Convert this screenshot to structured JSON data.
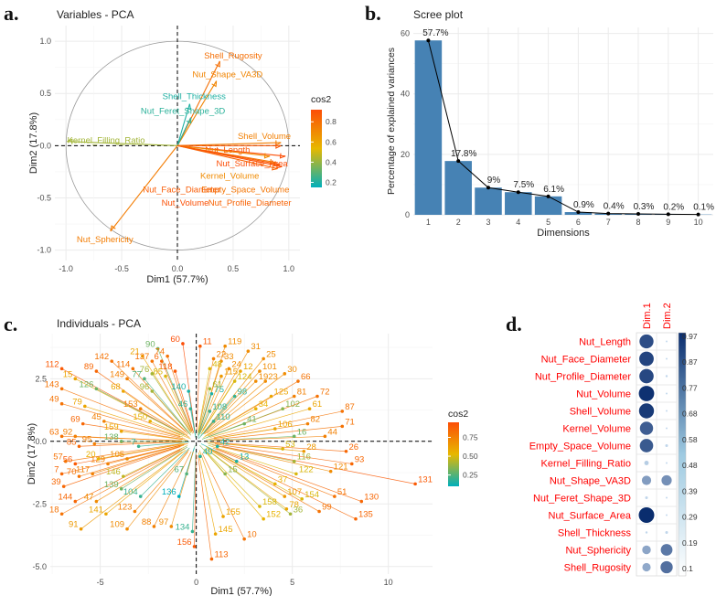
{
  "panel_labels": {
    "a": "a.",
    "b": "b.",
    "c": "c.",
    "d": "d."
  },
  "chart_data": [
    {
      "type": "scatter",
      "subtype": "pca-variable-correlation-circle",
      "title": "Variables - PCA",
      "xlabel": "Dim1 (57.7%)",
      "ylabel": "Dim2 (17.8%)",
      "xlim": [
        -1.1,
        1.1
      ],
      "ylim": [
        -1.1,
        1.15
      ],
      "xticks": [
        "-1.0",
        "-0.5",
        "0.0",
        "0.5",
        "1.0"
      ],
      "yticks": [
        "-1.0",
        "-0.5",
        "0.0",
        "0.5",
        "1.0"
      ],
      "legend_title": "cos2",
      "legend_ticks": [
        "0.8",
        "0.6",
        "0.4",
        "0.2"
      ],
      "legend_range": [
        0.15,
        0.92
      ],
      "variables": [
        {
          "name": "Shell_Rugosity",
          "x": 0.38,
          "y": 0.81,
          "cos2": 0.8,
          "lx": 0.5,
          "ly": 0.86
        },
        {
          "name": "Nut_Shape_VA3D",
          "x": 0.35,
          "y": 0.62,
          "cos2": 0.72,
          "lx": 0.45,
          "ly": 0.68
        },
        {
          "name": "Shell_Thickness",
          "x": 0.11,
          "y": 0.4,
          "cos2": 0.2,
          "lx": 0.15,
          "ly": 0.47
        },
        {
          "name": "Nut_Feret_Shape_3D",
          "x": 0.12,
          "y": 0.27,
          "cos2": 0.22,
          "lx": 0.05,
          "ly": 0.33
        },
        {
          "name": "Kernel_Filling_Ratio",
          "x": -0.99,
          "y": 0.04,
          "cos2": 0.42,
          "lx": -0.64,
          "ly": 0.05
        },
        {
          "name": "Shell_Volume",
          "x": 0.93,
          "y": 0.03,
          "cos2": 0.74,
          "lx": 0.78,
          "ly": 0.09
        },
        {
          "name": "Nut_Length",
          "x": 0.93,
          "y": 0.0,
          "cos2": 0.88,
          "lx": 0.45,
          "ly": -0.04
        },
        {
          "name": "Nut_Surface_Area",
          "x": 0.97,
          "y": -0.1,
          "cos2": 0.92,
          "lx": 0.67,
          "ly": -0.17
        },
        {
          "name": "Kernel_Volume",
          "x": 0.83,
          "y": -0.1,
          "cos2": 0.7,
          "lx": 0.47,
          "ly": -0.29
        },
        {
          "name": "Empty_Space_Volume",
          "x": 0.88,
          "y": -0.16,
          "cos2": 0.78,
          "lx": 0.61,
          "ly": -0.42
        },
        {
          "name": "Nut_Face_Diameter",
          "x": 0.92,
          "y": -0.18,
          "cos2": 0.87,
          "lx": 0.04,
          "ly": -0.42
        },
        {
          "name": "Nut_Volume",
          "x": 0.94,
          "y": -0.2,
          "cos2": 0.91,
          "lx": 0.07,
          "ly": -0.55
        },
        {
          "name": "Nut_Profile_Diameter",
          "x": 0.9,
          "y": -0.22,
          "cos2": 0.84,
          "lx": 0.65,
          "ly": -0.55
        },
        {
          "name": "Nut_Sphericity",
          "x": -0.6,
          "y": -0.82,
          "cos2": 0.75,
          "lx": -0.65,
          "ly": -0.9
        }
      ]
    },
    {
      "type": "bar",
      "subtype": "scree-plot",
      "title": "Scree plot",
      "xlabel": "Dimensions",
      "ylabel": "Percentage of explained variances",
      "categories": [
        "1",
        "2",
        "3",
        "4",
        "5",
        "6",
        "7",
        "8",
        "9",
        "10"
      ],
      "values": [
        57.7,
        17.8,
        9,
        7.5,
        6.1,
        0.9,
        0.4,
        0.3,
        0.2,
        0.1
      ],
      "value_labels": [
        "57.7%",
        "17.8%",
        "9%",
        "7.5%",
        "6.1%",
        "0.9%",
        "0.4%",
        "0.3%",
        "0.2%",
        "0.1%"
      ],
      "ylim": [
        0,
        62
      ],
      "yticks": [
        "0",
        "20",
        "40",
        "60"
      ],
      "bar_color": "#4682b4",
      "line_color": "#000000"
    },
    {
      "type": "scatter",
      "subtype": "pca-individuals",
      "title": "Individuals - PCA",
      "xlabel": "Dim1 (57.7%)",
      "ylabel": "Dim2 (17.8%)",
      "xlim": [
        -7.6,
        12.3
      ],
      "ylim": [
        -5.3,
        4.3
      ],
      "xticks": [
        "-5",
        "0",
        "5",
        "10"
      ],
      "yticks": [
        "-5.0",
        "-2.5",
        "0.0",
        "2.5"
      ],
      "legend_title": "cos2",
      "legend_ticks": [
        "0.75",
        "0.50",
        "0.25"
      ],
      "legend_range": [
        0.1,
        0.95
      ],
      "points": [
        {
          "id": "60",
          "x": -0.7,
          "y": 3.9,
          "cos2": 0.95
        },
        {
          "id": "11",
          "x": 0.2,
          "y": 3.8,
          "cos2": 0.9
        },
        {
          "id": "119",
          "x": 1.5,
          "y": 3.8,
          "cos2": 0.7
        },
        {
          "id": "31",
          "x": 2.7,
          "y": 3.6,
          "cos2": 0.7
        },
        {
          "id": "90",
          "x": -2.0,
          "y": 3.7,
          "cos2": 0.3
        },
        {
          "id": "74",
          "x": -1.5,
          "y": 3.4,
          "cos2": 0.8
        },
        {
          "id": "21",
          "x": -2.8,
          "y": 3.4,
          "cos2": 0.6
        },
        {
          "id": "6",
          "x": -1.8,
          "y": 3.2,
          "cos2": 0.85
        },
        {
          "id": "137",
          "x": -2.3,
          "y": 3.2,
          "cos2": 0.8
        },
        {
          "id": "22",
          "x": 0.9,
          "y": 3.3,
          "cos2": 0.75
        },
        {
          "id": "33",
          "x": 1.3,
          "y": 3.2,
          "cos2": 0.7
        },
        {
          "id": "25",
          "x": 3.5,
          "y": 3.3,
          "cos2": 0.7
        },
        {
          "id": "142",
          "x": -4.4,
          "y": 3.2,
          "cos2": 0.8
        },
        {
          "id": "114",
          "x": -3.3,
          "y": 2.9,
          "cos2": 0.8
        },
        {
          "id": "118",
          "x": -1.1,
          "y": 2.8,
          "cos2": 0.9
        },
        {
          "id": "48",
          "x": 0.7,
          "y": 2.9,
          "cos2": 0.5
        },
        {
          "id": "12",
          "x": 2.3,
          "y": 2.8,
          "cos2": 0.6
        },
        {
          "id": "24",
          "x": 1.7,
          "y": 2.9,
          "cos2": 0.7
        },
        {
          "id": "89",
          "x": -5.2,
          "y": 2.8,
          "cos2": 0.85
        },
        {
          "id": "112",
          "x": -7.0,
          "y": 2.9,
          "cos2": 0.9
        },
        {
          "id": "76",
          "x": -2.3,
          "y": 2.7,
          "cos2": 0.4
        },
        {
          "id": "101",
          "x": 3.3,
          "y": 2.8,
          "cos2": 0.7
        },
        {
          "id": "30",
          "x": 4.6,
          "y": 2.7,
          "cos2": 0.7
        },
        {
          "id": "15",
          "x": -6.3,
          "y": 2.5,
          "cos2": 0.6
        },
        {
          "id": "149",
          "x": -3.6,
          "y": 2.5,
          "cos2": 0.75
        },
        {
          "id": "77",
          "x": -2.7,
          "y": 2.5,
          "cos2": 0.25
        },
        {
          "id": "85",
          "x": -1.6,
          "y": 2.6,
          "cos2": 0.5
        },
        {
          "id": "115",
          "x": 1.3,
          "y": 2.6,
          "cos2": 0.65
        },
        {
          "id": "124",
          "x": 2.0,
          "y": 2.4,
          "cos2": 0.5
        },
        {
          "id": "19",
          "x": 3.1,
          "y": 2.4,
          "cos2": 0.7
        },
        {
          "id": "23",
          "x": 3.6,
          "y": 2.4,
          "cos2": 0.7
        },
        {
          "id": "66",
          "x": 5.3,
          "y": 2.4,
          "cos2": 0.8
        },
        {
          "id": "143",
          "x": -7.0,
          "y": 2.1,
          "cos2": 0.8
        },
        {
          "id": "126",
          "x": -5.2,
          "y": 2.1,
          "cos2": 0.3
        },
        {
          "id": "68",
          "x": -3.8,
          "y": 2.0,
          "cos2": 0.6
        },
        {
          "id": "96",
          "x": -2.3,
          "y": 2.0,
          "cos2": 0.4
        },
        {
          "id": "140",
          "x": -0.4,
          "y": 2.0,
          "cos2": 0.15
        },
        {
          "id": "75",
          "x": 0.8,
          "y": 1.9,
          "cos2": 0.15
        },
        {
          "id": "61",
          "x": 0.7,
          "y": 2.1,
          "cos2": 0.4
        },
        {
          "id": "98",
          "x": 2.0,
          "y": 1.8,
          "cos2": 0.2
        },
        {
          "id": "125",
          "x": 3.9,
          "y": 1.8,
          "cos2": 0.6
        },
        {
          "id": "81",
          "x": 5.1,
          "y": 1.8,
          "cos2": 0.75
        },
        {
          "id": "72",
          "x": 6.3,
          "y": 1.8,
          "cos2": 0.8
        },
        {
          "id": "49",
          "x": -7.0,
          "y": 1.5,
          "cos2": 0.8
        },
        {
          "id": "79",
          "x": -5.8,
          "y": 1.4,
          "cos2": 0.6
        },
        {
          "id": "153",
          "x": -2.9,
          "y": 1.3,
          "cos2": 0.75
        },
        {
          "id": "46",
          "x": -0.3,
          "y": 1.3,
          "cos2": 0.2
        },
        {
          "id": "108",
          "x": 0.7,
          "y": 1.2,
          "cos2": 0.2
        },
        {
          "id": "34",
          "x": 3.1,
          "y": 1.3,
          "cos2": 0.55
        },
        {
          "id": "102",
          "x": 4.5,
          "y": 1.3,
          "cos2": 0.35
        },
        {
          "id": "61b",
          "label": "61",
          "x": 5.9,
          "y": 1.3,
          "cos2": 0.6
        },
        {
          "id": "87",
          "x": 7.6,
          "y": 1.2,
          "cos2": 0.8
        },
        {
          "id": "69",
          "x": -5.9,
          "y": 0.7,
          "cos2": 0.85
        },
        {
          "id": "45",
          "x": -4.8,
          "y": 0.8,
          "cos2": 0.75
        },
        {
          "id": "82",
          "x": 5.8,
          "y": 0.7,
          "cos2": 0.75
        },
        {
          "id": "71",
          "x": 7.6,
          "y": 0.6,
          "cos2": 0.8
        },
        {
          "id": "63",
          "x": -7.0,
          "y": 0.2,
          "cos2": 0.8
        },
        {
          "id": "92",
          "x": -6.3,
          "y": 0.2,
          "cos2": 0.75
        },
        {
          "id": "150",
          "x": -2.4,
          "y": 0.8,
          "cos2": 0.55
        },
        {
          "id": "159",
          "x": -3.9,
          "y": 0.4,
          "cos2": 0.6
        },
        {
          "id": "106",
          "x": 4.1,
          "y": 0.5,
          "cos2": 0.6
        },
        {
          "id": "110",
          "x": 0.9,
          "y": 0.8,
          "cos2": 0.2
        },
        {
          "id": "41",
          "x": 2.5,
          "y": 0.7,
          "cos2": 0.3
        },
        {
          "id": "16",
          "x": 5.1,
          "y": 0.2,
          "cos2": 0.3
        },
        {
          "id": "44",
          "x": 6.7,
          "y": 0.2,
          "cos2": 0.75
        },
        {
          "id": "85b",
          "label": "85",
          "x": -6.1,
          "y": -0.2,
          "cos2": 0.85
        },
        {
          "id": "95",
          "x": -5.3,
          "y": -0.1,
          "cos2": 0.75
        },
        {
          "id": "138",
          "x": -3.9,
          "y": 0.0,
          "cos2": 0.3
        },
        {
          "id": "7",
          "x": -3.0,
          "y": -0.2,
          "cos2": 0.2
        },
        {
          "id": "42",
          "x": 1.1,
          "y": -0.2,
          "cos2": 0.15
        },
        {
          "id": "53",
          "x": 4.5,
          "y": -0.3,
          "cos2": 0.5
        },
        {
          "id": "28",
          "x": 5.6,
          "y": -0.4,
          "cos2": 0.65
        },
        {
          "id": "26",
          "x": 7.8,
          "y": -0.4,
          "cos2": 0.85
        },
        {
          "id": "56",
          "x": -6.3,
          "y": -0.9,
          "cos2": 0.9
        },
        {
          "id": "57",
          "x": -6.8,
          "y": -0.8,
          "cos2": 0.8
        },
        {
          "id": "129",
          "x": -4.6,
          "y": -0.9,
          "cos2": 0.75
        },
        {
          "id": "20",
          "x": -5.1,
          "y": -0.7,
          "cos2": 0.55
        },
        {
          "id": "105",
          "x": -3.6,
          "y": -0.7,
          "cos2": 0.7
        },
        {
          "id": "40",
          "x": 0.2,
          "y": -0.6,
          "cos2": 0.15
        },
        {
          "id": "13",
          "x": 2.1,
          "y": -0.8,
          "cos2": 0.15
        },
        {
          "id": "116",
          "x": 5.1,
          "y": -0.8,
          "cos2": 0.4
        },
        {
          "id": "93",
          "x": 8.1,
          "y": -0.9,
          "cos2": 0.85
        },
        {
          "id": "7b",
          "label": "7",
          "x": -7.0,
          "y": -1.3,
          "cos2": 0.85
        },
        {
          "id": "70",
          "x": -6.1,
          "y": -1.4,
          "cos2": 0.8
        },
        {
          "id": "117",
          "x": -5.4,
          "y": -1.3,
          "cos2": 0.75
        },
        {
          "id": "146",
          "x": -3.8,
          "y": -1.4,
          "cos2": 0.45
        },
        {
          "id": "67",
          "x": -0.5,
          "y": -1.3,
          "cos2": 0.25
        },
        {
          "id": "15b",
          "label": "15",
          "x": 1.5,
          "y": -1.3,
          "cos2": 0.35
        },
        {
          "id": "122",
          "x": 5.2,
          "y": -1.3,
          "cos2": 0.5
        },
        {
          "id": "121",
          "x": 7.0,
          "y": -1.2,
          "cos2": 0.7
        },
        {
          "id": "39",
          "x": -6.9,
          "y": -1.8,
          "cos2": 0.85
        },
        {
          "id": "139",
          "x": -3.9,
          "y": -1.9,
          "cos2": 0.3
        },
        {
          "id": "104",
          "x": -2.9,
          "y": -2.2,
          "cos2": 0.2
        },
        {
          "id": "136",
          "x": -0.9,
          "y": -2.2,
          "cos2": 0.1
        },
        {
          "id": "37",
          "x": 4.1,
          "y": -1.7,
          "cos2": 0.55
        },
        {
          "id": "47",
          "x": -5.2,
          "y": -2.4,
          "cos2": 0.7
        },
        {
          "id": "144",
          "x": -6.3,
          "y": -2.4,
          "cos2": 0.85
        },
        {
          "id": "107",
          "x": 4.6,
          "y": -2.2,
          "cos2": 0.65
        },
        {
          "id": "154",
          "x": 5.5,
          "y": -2.3,
          "cos2": 0.5
        },
        {
          "id": "51",
          "x": 7.2,
          "y": -2.2,
          "cos2": 0.8
        },
        {
          "id": "130",
          "x": 8.6,
          "y": -2.4,
          "cos2": 0.85
        },
        {
          "id": "131",
          "x": 11.4,
          "y": -1.7,
          "cos2": 0.9
        },
        {
          "id": "18",
          "x": -7.0,
          "y": -2.9,
          "cos2": 0.8
        },
        {
          "id": "141",
          "x": -4.7,
          "y": -2.9,
          "cos2": 0.6
        },
        {
          "id": "123",
          "x": -3.2,
          "y": -2.8,
          "cos2": 0.75
        },
        {
          "id": "158",
          "x": 3.3,
          "y": -2.6,
          "cos2": 0.5
        },
        {
          "id": "78",
          "x": 4.7,
          "y": -2.7,
          "cos2": 0.6
        },
        {
          "id": "99",
          "x": 6.4,
          "y": -2.8,
          "cos2": 0.8
        },
        {
          "id": "135",
          "x": 8.3,
          "y": -3.1,
          "cos2": 0.85
        },
        {
          "id": "91",
          "x": -6.0,
          "y": -3.5,
          "cos2": 0.65
        },
        {
          "id": "109",
          "x": -3.6,
          "y": -3.5,
          "cos2": 0.7
        },
        {
          "id": "88",
          "x": -2.2,
          "y": -3.4,
          "cos2": 0.75
        },
        {
          "id": "97",
          "x": -1.3,
          "y": -3.4,
          "cos2": 0.7
        },
        {
          "id": "134",
          "x": -0.2,
          "y": -3.6,
          "cos2": 0.2
        },
        {
          "id": "155",
          "x": 1.4,
          "y": -3.0,
          "cos2": 0.6
        },
        {
          "id": "152",
          "x": 3.5,
          "y": -3.1,
          "cos2": 0.55
        },
        {
          "id": "36",
          "x": 4.9,
          "y": -2.9,
          "cos2": 0.4
        },
        {
          "id": "145",
          "x": 1.0,
          "y": -3.7,
          "cos2": 0.6
        },
        {
          "id": "10",
          "x": 2.5,
          "y": -3.9,
          "cos2": 0.8
        },
        {
          "id": "156",
          "x": -0.1,
          "y": -4.2,
          "cos2": 0.9
        },
        {
          "id": "113",
          "x": 0.8,
          "y": -4.7,
          "cos2": 0.85
        }
      ]
    },
    {
      "type": "heatmap",
      "subtype": "corrplot-circles",
      "columns": [
        "Dim.1",
        "Dim.2"
      ],
      "rows": [
        "Nut_Length",
        "Nut_Face_Diameter",
        "Nut_Profile_Diameter",
        "Nut_Volume",
        "Shell_Volume",
        "Kernel_Volume",
        "Empty_Space_Volume",
        "Kernel_Filling_Ratio",
        "Nut_Shape_VA3D",
        "Nut_Feret_Shape_3D",
        "Nut_Surface_Area",
        "Shell_Thickness",
        "Nut_Sphericity",
        "Shell_Rugosity"
      ],
      "values": [
        [
          0.79,
          0.0
        ],
        [
          0.84,
          0.01
        ],
        [
          0.82,
          0.02
        ],
        [
          0.95,
          0.01
        ],
        [
          0.9,
          0.0
        ],
        [
          0.7,
          0.01
        ],
        [
          0.72,
          0.03
        ],
        [
          0.08,
          0.01
        ],
        [
          0.35,
          0.42
        ],
        [
          0.03,
          0.01
        ],
        [
          0.97,
          0.01
        ],
        [
          0.02,
          0.03
        ],
        [
          0.3,
          0.55
        ],
        [
          0.28,
          0.6
        ]
      ],
      "scale_ticks": [
        "0.97",
        "0.87",
        "0.77",
        "0.68",
        "0.58",
        "0.48",
        "0.39",
        "0.29",
        "0.19",
        "0.1"
      ],
      "scale_range": [
        0.0,
        0.97
      ],
      "color": "#0a2d6e",
      "label_color": "#ff0000"
    }
  ]
}
